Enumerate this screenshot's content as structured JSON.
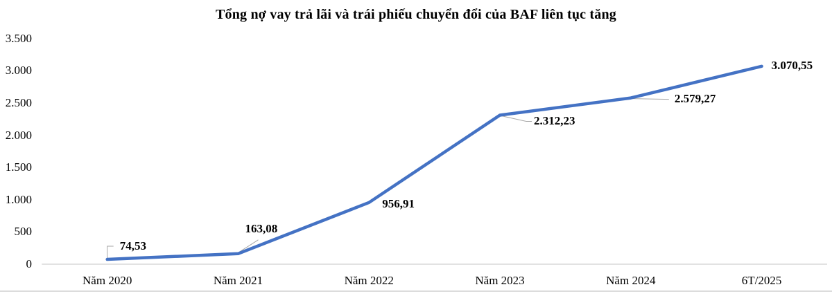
{
  "chart_data": {
    "type": "line",
    "title": "Tổng nợ vay trả lãi và trái phiếu chuyển đổi của BAF liên tục tăng",
    "categories": [
      "Năm 2020",
      "Năm 2021",
      "Năm 2022",
      "Năm 2023",
      "Năm 2024",
      "6T/2025"
    ],
    "values": [
      74.53,
      163.08,
      956.91,
      2312.23,
      2579.27,
      3070.55
    ],
    "point_labels": [
      "74,53",
      "163,08",
      "956,91",
      "2.312,23",
      "2.579,27",
      "3.070,55"
    ],
    "y_ticks": [
      {
        "value": 0,
        "label": "0"
      },
      {
        "value": 500,
        "label": "500"
      },
      {
        "value": 1000,
        "label": "1.000"
      },
      {
        "value": 1500,
        "label": "1.500"
      },
      {
        "value": 2000,
        "label": "2.000"
      },
      {
        "value": 2500,
        "label": "2.500"
      },
      {
        "value": 3000,
        "label": "3.000"
      },
      {
        "value": 3500,
        "label": "3.500"
      }
    ],
    "ylim": [
      0,
      3500
    ],
    "xlabel": "",
    "ylabel": "",
    "grid": false,
    "legend": false,
    "colors": {
      "line": "#4472C4",
      "axis_line": "#D9D9D9",
      "leader_line": "#A6A6A6",
      "text": "#000000"
    }
  }
}
